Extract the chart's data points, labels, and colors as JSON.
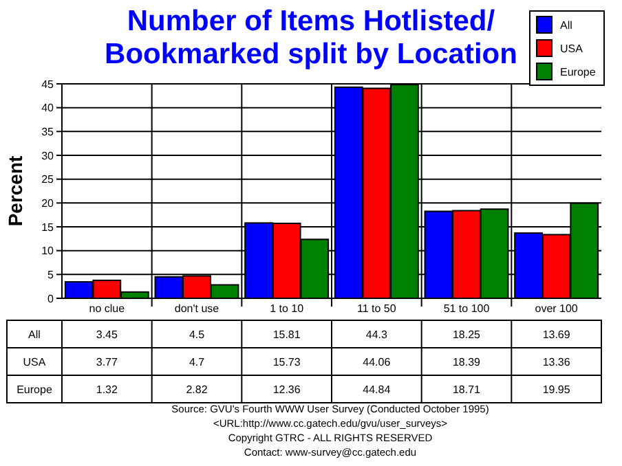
{
  "chart_data": {
    "type": "bar",
    "title": "Number of Items Hotlisted/ Bookmarked split by Location",
    "ylabel": "Percent",
    "categories": [
      "no clue",
      "don't use",
      "1 to 10",
      "11 to 50",
      "51 to 100",
      "over 100"
    ],
    "series": [
      {
        "name": "All",
        "color": "#0000ff",
        "values": [
          3.45,
          4.5,
          15.81,
          44.3,
          18.25,
          13.69
        ]
      },
      {
        "name": "USA",
        "color": "#ff0000",
        "values": [
          3.77,
          4.7,
          15.73,
          44.06,
          18.39,
          13.36
        ]
      },
      {
        "name": "Europe",
        "color": "#008000",
        "values": [
          1.32,
          2.82,
          12.36,
          44.84,
          18.71,
          19.95
        ]
      }
    ],
    "ylim": [
      0,
      45
    ],
    "yticks": [
      0,
      5,
      10,
      15,
      20,
      25,
      30,
      35,
      40,
      45
    ],
    "grid": "y",
    "legend": "top right",
    "data_labels": true,
    "annotations": [
      "Source: GVU's Fourth WWW User Survey (Conducted October 1995)",
      "<URL:http://www.cc.gatech.edu/gvu/user_surveys>",
      "Copyright GTRC -  ALL RIGHTS RESERVED",
      "Contact: www-survey@cc.gatech.edu"
    ]
  }
}
